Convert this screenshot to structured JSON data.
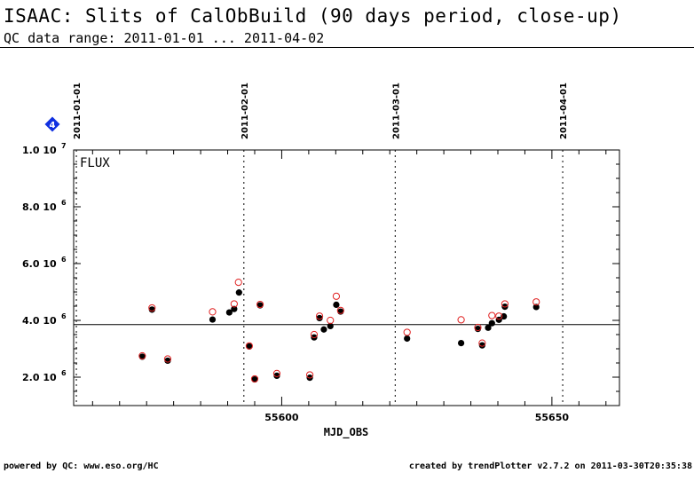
{
  "header": {
    "title": "ISAAC: Slits of CalObBuild (90 days period, close-up)",
    "subtitle": "QC data range: 2011-01-01 ... 2011-04-02"
  },
  "footer": {
    "left": "powered by QC: www.eso.org/HC",
    "right": "created by trendPlotter v2.7.2 on 2011-03-30T20:35:38"
  },
  "badge": {
    "label": "4",
    "color": "#1030e0"
  },
  "chart_data": {
    "type": "scatter",
    "panel_label": "FLUX",
    "xlabel": "MJD_OBS",
    "ylabel": "",
    "xlim": [
      55561.5,
      55662.5
    ],
    "ylim": [
      1000000,
      10000000
    ],
    "x_ticks": [
      55600,
      55650
    ],
    "y_ticks": [
      {
        "value": 2000000,
        "mant": "2.0",
        "exp": "6"
      },
      {
        "value": 4000000,
        "mant": "4.0",
        "exp": "6"
      },
      {
        "value": 6000000,
        "mant": "6.0",
        "exp": "6"
      },
      {
        "value": 8000000,
        "mant": "8.0",
        "exp": "6"
      },
      {
        "value": 10000000,
        "mant": "1.0",
        "exp": "7"
      }
    ],
    "date_markers": [
      {
        "label": "2011-01-01",
        "mjd": 55562
      },
      {
        "label": "2011-02-01",
        "mjd": 55593
      },
      {
        "label": "2011-03-01",
        "mjd": 55621
      },
      {
        "label": "2011-04-01",
        "mjd": 55652
      }
    ],
    "reference_line": 3850000,
    "series": [
      {
        "color": "#000000",
        "marker": "filled-circle",
        "points": [
          {
            "x": 55574.2,
            "y": 2720000
          },
          {
            "x": 55576.0,
            "y": 4380000
          },
          {
            "x": 55578.9,
            "y": 2580000
          },
          {
            "x": 55587.2,
            "y": 4030000
          },
          {
            "x": 55590.3,
            "y": 4280000
          },
          {
            "x": 55591.2,
            "y": 4400000
          },
          {
            "x": 55592.1,
            "y": 4980000
          },
          {
            "x": 55594.0,
            "y": 3080000
          },
          {
            "x": 55595.0,
            "y": 1920000
          },
          {
            "x": 55596.0,
            "y": 4530000
          },
          {
            "x": 55599.1,
            "y": 2050000
          },
          {
            "x": 55605.2,
            "y": 1980000
          },
          {
            "x": 55606.0,
            "y": 3400000
          },
          {
            "x": 55607.0,
            "y": 4080000
          },
          {
            "x": 55607.8,
            "y": 3680000
          },
          {
            "x": 55609.0,
            "y": 3800000
          },
          {
            "x": 55610.1,
            "y": 4550000
          },
          {
            "x": 55610.9,
            "y": 4310000
          },
          {
            "x": 55623.2,
            "y": 3360000
          },
          {
            "x": 55633.2,
            "y": 3200000
          },
          {
            "x": 55636.3,
            "y": 3700000
          },
          {
            "x": 55637.1,
            "y": 3120000
          },
          {
            "x": 55638.2,
            "y": 3740000
          },
          {
            "x": 55638.9,
            "y": 3900000
          },
          {
            "x": 55640.2,
            "y": 4020000
          },
          {
            "x": 55641.1,
            "y": 4140000
          },
          {
            "x": 55641.3,
            "y": 4480000
          },
          {
            "x": 55647.1,
            "y": 4470000
          }
        ]
      },
      {
        "color": "#e02020",
        "marker": "open-circle",
        "points": [
          {
            "x": 55574.2,
            "y": 2750000
          },
          {
            "x": 55576.0,
            "y": 4440000
          },
          {
            "x": 55578.9,
            "y": 2640000
          },
          {
            "x": 55587.2,
            "y": 4300000
          },
          {
            "x": 55591.2,
            "y": 4580000
          },
          {
            "x": 55592.0,
            "y": 5340000
          },
          {
            "x": 55594.0,
            "y": 3100000
          },
          {
            "x": 55595.0,
            "y": 1940000
          },
          {
            "x": 55596.0,
            "y": 4560000
          },
          {
            "x": 55599.1,
            "y": 2130000
          },
          {
            "x": 55605.2,
            "y": 2080000
          },
          {
            "x": 55606.0,
            "y": 3500000
          },
          {
            "x": 55607.0,
            "y": 4150000
          },
          {
            "x": 55609.0,
            "y": 4000000
          },
          {
            "x": 55610.1,
            "y": 4850000
          },
          {
            "x": 55610.9,
            "y": 4350000
          },
          {
            "x": 55623.2,
            "y": 3580000
          },
          {
            "x": 55633.2,
            "y": 4020000
          },
          {
            "x": 55636.3,
            "y": 3750000
          },
          {
            "x": 55637.1,
            "y": 3200000
          },
          {
            "x": 55638.9,
            "y": 4170000
          },
          {
            "x": 55640.2,
            "y": 4150000
          },
          {
            "x": 55641.3,
            "y": 4580000
          },
          {
            "x": 55647.1,
            "y": 4650000
          }
        ]
      }
    ]
  }
}
